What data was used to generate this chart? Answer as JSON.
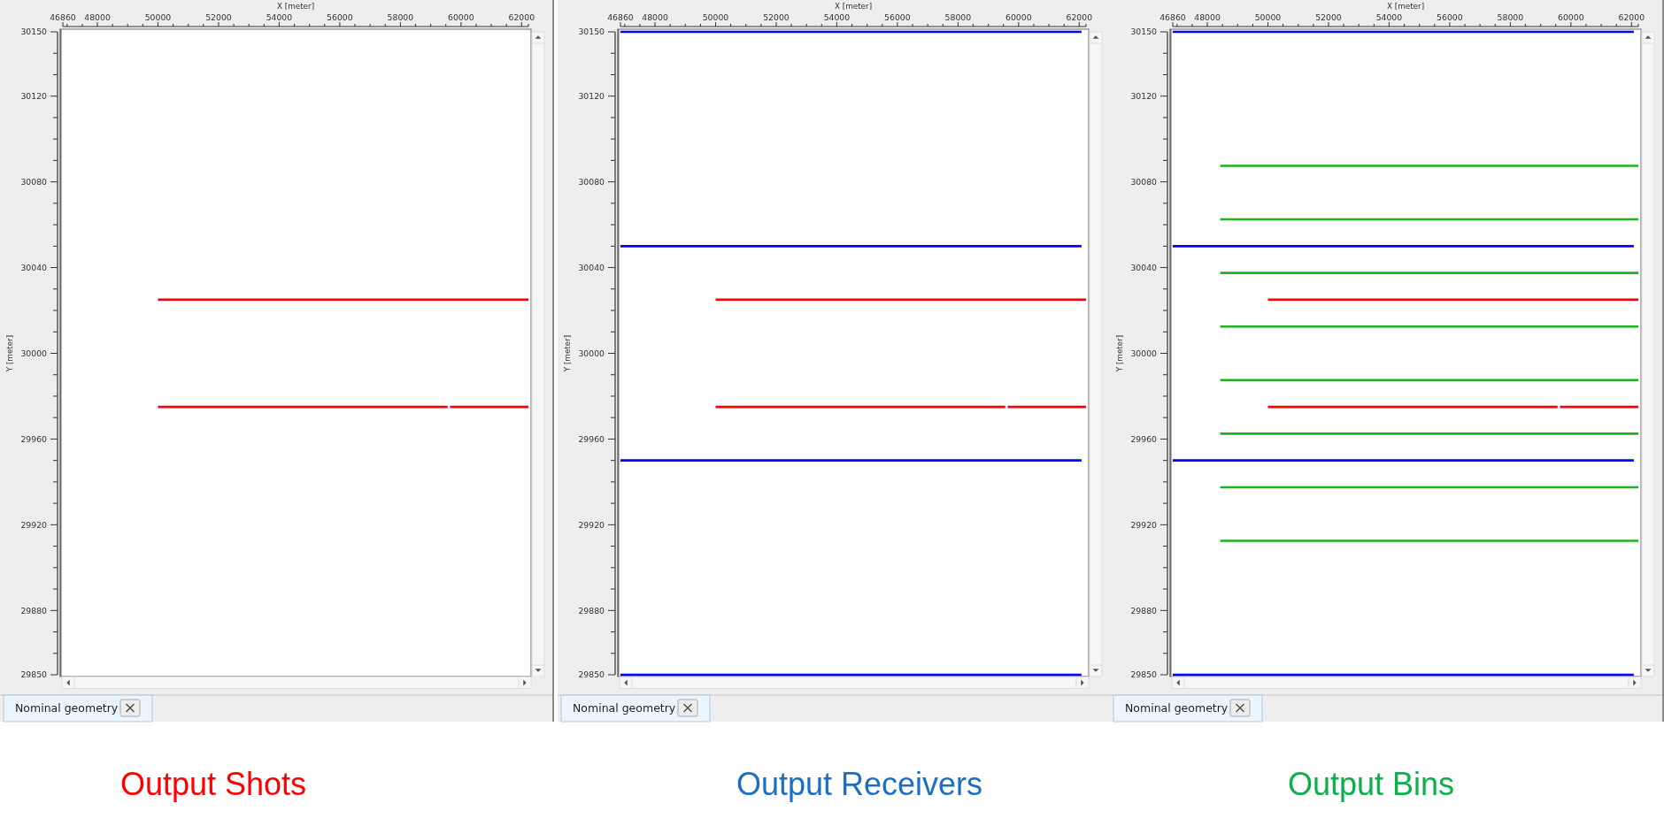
{
  "chart_data": [
    {
      "type": "line",
      "title": "Output Shots",
      "xlabel": "X [meter]",
      "ylabel": "Y [meter]",
      "annotations": [
        "Nominal geometry"
      ],
      "xlim": [
        46860,
        62225
      ],
      "ylim": [
        29850,
        30150
      ],
      "xticks": [
        46860,
        {
          "value": 47000,
          "label": null
        },
        {
          "value": 47500,
          "label": null
        },
        48000,
        {
          "value": 48500,
          "label": null
        },
        {
          "value": 49000,
          "label": null
        },
        {
          "value": 49500,
          "label": null
        },
        50000,
        {
          "value": 50500,
          "label": null
        },
        {
          "value": 51000,
          "label": null
        },
        {
          "value": 51500,
          "label": null
        },
        52000,
        {
          "value": 52500,
          "label": null
        },
        {
          "value": 53000,
          "label": null
        },
        {
          "value": 53500,
          "label": null
        },
        54000,
        {
          "value": 54500,
          "label": null
        },
        {
          "value": 55000,
          "label": null
        },
        {
          "value": 55500,
          "label": null
        },
        56000,
        {
          "value": 56500,
          "label": null
        },
        {
          "value": 57000,
          "label": null
        },
        {
          "value": 57500,
          "label": null
        },
        58000,
        {
          "value": 58500,
          "label": null
        },
        {
          "value": 59000,
          "label": null
        },
        {
          "value": 59500,
          "label": null
        },
        60000,
        {
          "value": 60500,
          "label": null
        },
        {
          "value": 61000,
          "label": null
        },
        {
          "value": 61500,
          "label": null
        },
        62000,
        {
          "value": 62225,
          "label": null
        }
      ],
      "yticks": [
        29850,
        {
          "value": 29860,
          "label": null
        },
        {
          "value": 29870,
          "label": null
        },
        29880,
        {
          "value": 29890,
          "label": null
        },
        {
          "value": 29900,
          "label": null
        },
        {
          "value": 29910,
          "label": null
        },
        29920,
        {
          "value": 29930,
          "label": null
        },
        {
          "value": 29940,
          "label": null
        },
        {
          "value": 29950,
          "label": null
        },
        29960,
        {
          "value": 29970,
          "label": null
        },
        {
          "value": 29980,
          "label": null
        },
        {
          "value": 29990,
          "label": null
        },
        30000,
        {
          "value": 30010,
          "label": null
        },
        {
          "value": 30020,
          "label": null
        },
        {
          "value": 30030,
          "label": null
        },
        30040,
        {
          "value": 30050,
          "label": null
        },
        {
          "value": 30060,
          "label": null
        },
        {
          "value": 30070,
          "label": null
        },
        30080,
        {
          "value": 30090,
          "label": null
        },
        {
          "value": 30100,
          "label": null
        },
        {
          "value": 30110,
          "label": null
        },
        30120,
        {
          "value": 30130,
          "label": null
        },
        {
          "value": 30140,
          "label": null
        },
        30150
      ],
      "series": [
        {
          "color": "#ff0000",
          "x": [
            50000,
            62225
          ],
          "values": [
            30025,
            30025
          ]
        },
        {
          "color": "#ff0000",
          "x": [
            50000,
            59560,
            59600,
            59640,
            62225
          ],
          "values": [
            29975,
            29975,
            null,
            29975,
            29975
          ]
        }
      ]
    },
    {
      "type": "line",
      "title": "Output Receivers",
      "xlabel": "X [meter]",
      "ylabel": "Y [meter]",
      "annotations": [
        "Nominal geometry"
      ],
      "xlim": [
        46860,
        62225
      ],
      "ylim": [
        29850,
        30150
      ],
      "xticks": [
        46860,
        {
          "value": 47000,
          "label": null
        },
        {
          "value": 47500,
          "label": null
        },
        48000,
        {
          "value": 48500,
          "label": null
        },
        {
          "value": 49000,
          "label": null
        },
        {
          "value": 49500,
          "label": null
        },
        50000,
        {
          "value": 50500,
          "label": null
        },
        {
          "value": 51000,
          "label": null
        },
        {
          "value": 51500,
          "label": null
        },
        52000,
        {
          "value": 52500,
          "label": null
        },
        {
          "value": 53000,
          "label": null
        },
        {
          "value": 53500,
          "label": null
        },
        54000,
        {
          "value": 54500,
          "label": null
        },
        {
          "value": 55000,
          "label": null
        },
        {
          "value": 55500,
          "label": null
        },
        56000,
        {
          "value": 56500,
          "label": null
        },
        {
          "value": 57000,
          "label": null
        },
        {
          "value": 57500,
          "label": null
        },
        58000,
        {
          "value": 58500,
          "label": null
        },
        {
          "value": 59000,
          "label": null
        },
        {
          "value": 59500,
          "label": null
        },
        60000,
        {
          "value": 60500,
          "label": null
        },
        {
          "value": 61000,
          "label": null
        },
        {
          "value": 61500,
          "label": null
        },
        62000,
        {
          "value": 62225,
          "label": null
        }
      ],
      "yticks": [
        29850,
        {
          "value": 29860,
          "label": null
        },
        {
          "value": 29870,
          "label": null
        },
        29880,
        {
          "value": 29890,
          "label": null
        },
        {
          "value": 29900,
          "label": null
        },
        {
          "value": 29910,
          "label": null
        },
        29920,
        {
          "value": 29930,
          "label": null
        },
        {
          "value": 29940,
          "label": null
        },
        {
          "value": 29950,
          "label": null
        },
        29960,
        {
          "value": 29970,
          "label": null
        },
        {
          "value": 29980,
          "label": null
        },
        {
          "value": 29990,
          "label": null
        },
        30000,
        {
          "value": 30010,
          "label": null
        },
        {
          "value": 30020,
          "label": null
        },
        {
          "value": 30030,
          "label": null
        },
        30040,
        {
          "value": 30050,
          "label": null
        },
        {
          "value": 30060,
          "label": null
        },
        {
          "value": 30070,
          "label": null
        },
        30080,
        {
          "value": 30090,
          "label": null
        },
        {
          "value": 30100,
          "label": null
        },
        {
          "value": 30110,
          "label": null
        },
        30120,
        {
          "value": 30130,
          "label": null
        },
        {
          "value": 30140,
          "label": null
        },
        30150
      ],
      "series": [
        {
          "color": "#0000ff",
          "x": [
            46860,
            62075
          ],
          "values": [
            30150,
            30150
          ]
        },
        {
          "color": "#0000ff",
          "x": [
            46860,
            62075
          ],
          "values": [
            30050,
            30050
          ]
        },
        {
          "color": "#0000ff",
          "x": [
            46860,
            62075
          ],
          "values": [
            29950,
            29950
          ]
        },
        {
          "color": "#0000ff",
          "x": [
            46860,
            62075
          ],
          "values": [
            29850,
            29850
          ]
        },
        {
          "color": "#ff0000",
          "x": [
            50000,
            62225
          ],
          "values": [
            30025,
            30025
          ]
        },
        {
          "color": "#ff0000",
          "x": [
            50000,
            59560,
            59600,
            59640,
            62225
          ],
          "values": [
            29975,
            29975,
            null,
            29975,
            29975
          ]
        }
      ]
    },
    {
      "type": "line",
      "title": "Output Bins",
      "xlabel": "X [meter]",
      "ylabel": "Y [meter]",
      "annotations": [
        "Nominal geometry"
      ],
      "xlim": [
        46860,
        62225
      ],
      "ylim": [
        29850,
        30150
      ],
      "xticks": [
        46860,
        {
          "value": 47000,
          "label": null
        },
        {
          "value": 47500,
          "label": null
        },
        48000,
        {
          "value": 48500,
          "label": null
        },
        {
          "value": 49000,
          "label": null
        },
        {
          "value": 49500,
          "label": null
        },
        50000,
        {
          "value": 50500,
          "label": null
        },
        {
          "value": 51000,
          "label": null
        },
        {
          "value": 51500,
          "label": null
        },
        52000,
        {
          "value": 52500,
          "label": null
        },
        {
          "value": 53000,
          "label": null
        },
        {
          "value": 53500,
          "label": null
        },
        54000,
        {
          "value": 54500,
          "label": null
        },
        {
          "value": 55000,
          "label": null
        },
        {
          "value": 55500,
          "label": null
        },
        56000,
        {
          "value": 56500,
          "label": null
        },
        {
          "value": 57000,
          "label": null
        },
        {
          "value": 57500,
          "label": null
        },
        58000,
        {
          "value": 58500,
          "label": null
        },
        {
          "value": 59000,
          "label": null
        },
        {
          "value": 59500,
          "label": null
        },
        60000,
        {
          "value": 60500,
          "label": null
        },
        {
          "value": 61000,
          "label": null
        },
        {
          "value": 61500,
          "label": null
        },
        62000,
        {
          "value": 62225,
          "label": null
        }
      ],
      "yticks": [
        29850,
        {
          "value": 29860,
          "label": null
        },
        {
          "value": 29870,
          "label": null
        },
        29880,
        {
          "value": 29890,
          "label": null
        },
        {
          "value": 29900,
          "label": null
        },
        {
          "value": 29910,
          "label": null
        },
        29920,
        {
          "value": 29930,
          "label": null
        },
        {
          "value": 29940,
          "label": null
        },
        {
          "value": 29950,
          "label": null
        },
        29960,
        {
          "value": 29970,
          "label": null
        },
        {
          "value": 29980,
          "label": null
        },
        {
          "value": 29990,
          "label": null
        },
        30000,
        {
          "value": 30010,
          "label": null
        },
        {
          "value": 30020,
          "label": null
        },
        {
          "value": 30030,
          "label": null
        },
        30040,
        {
          "value": 30050,
          "label": null
        },
        {
          "value": 30060,
          "label": null
        },
        {
          "value": 30070,
          "label": null
        },
        30080,
        {
          "value": 30090,
          "label": null
        },
        {
          "value": 30100,
          "label": null
        },
        {
          "value": 30110,
          "label": null
        },
        30120,
        {
          "value": 30130,
          "label": null
        },
        {
          "value": 30140,
          "label": null
        },
        30150
      ],
      "series": [
        {
          "color": "#1db31d",
          "x": [
            48425,
            62225
          ],
          "values": [
            30087.5,
            30087.5
          ]
        },
        {
          "color": "#1db31d",
          "x": [
            48425,
            62225
          ],
          "values": [
            30062.5,
            30062.5
          ]
        },
        {
          "color": "#1db31d",
          "x": [
            48425,
            62225
          ],
          "values": [
            30037.5,
            30037.5
          ]
        },
        {
          "color": "#1db31d",
          "x": [
            48425,
            62225
          ],
          "values": [
            30012.5,
            30012.5
          ]
        },
        {
          "color": "#1db31d",
          "x": [
            48425,
            62225
          ],
          "values": [
            29987.5,
            29987.5
          ]
        },
        {
          "color": "#1db31d",
          "x": [
            48425,
            62225
          ],
          "values": [
            29962.5,
            29962.5
          ]
        },
        {
          "color": "#1db31d",
          "x": [
            48425,
            62225
          ],
          "values": [
            29937.5,
            29937.5
          ]
        },
        {
          "color": "#1db31d",
          "x": [
            48425,
            62225
          ],
          "values": [
            29912.5,
            29912.5
          ]
        },
        {
          "color": "#0000ff",
          "x": [
            46860,
            62075
          ],
          "values": [
            30150,
            30150
          ]
        },
        {
          "color": "#0000ff",
          "x": [
            46860,
            62075
          ],
          "values": [
            30050,
            30050
          ]
        },
        {
          "color": "#0000ff",
          "x": [
            46860,
            62075
          ],
          "values": [
            29950,
            29950
          ]
        },
        {
          "color": "#0000ff",
          "x": [
            46860,
            62075
          ],
          "values": [
            29850,
            29850
          ]
        },
        {
          "color": "#ff0000",
          "x": [
            50000,
            62225
          ],
          "values": [
            30025,
            30025
          ]
        },
        {
          "color": "#ff0000",
          "x": [
            50000,
            59560,
            59600,
            59640,
            62225
          ],
          "values": [
            29975,
            29975,
            null,
            29975,
            29975
          ]
        }
      ]
    }
  ]
}
